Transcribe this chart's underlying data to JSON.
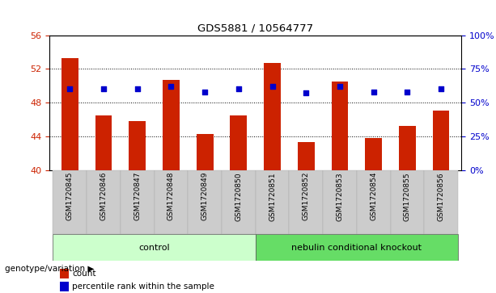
{
  "title": "GDS5881 / 10564777",
  "categories": [
    "GSM1720845",
    "GSM1720846",
    "GSM1720847",
    "GSM1720848",
    "GSM1720849",
    "GSM1720850",
    "GSM1720851",
    "GSM1720852",
    "GSM1720853",
    "GSM1720854",
    "GSM1720855",
    "GSM1720856"
  ],
  "bar_values": [
    53.3,
    46.5,
    45.8,
    50.7,
    44.3,
    46.5,
    52.7,
    43.3,
    50.5,
    43.8,
    45.2,
    47.0
  ],
  "percentile_values": [
    60.0,
    60.0,
    60.0,
    62.0,
    58.0,
    60.0,
    62.0,
    57.0,
    62.0,
    58.0,
    58.0,
    60.0
  ],
  "bar_color": "#cc2200",
  "dot_color": "#0000cc",
  "ylim_left": [
    40,
    56
  ],
  "ylim_right": [
    0,
    100
  ],
  "yticks_left": [
    40,
    44,
    48,
    52,
    56
  ],
  "yticks_right": [
    0,
    25,
    50,
    75,
    100
  ],
  "grid_values": [
    44,
    48,
    52
  ],
  "control_label": "control",
  "ko_label": "nebulin conditional knockout",
  "control_indices": [
    0,
    1,
    2,
    3,
    4,
    5
  ],
  "ko_indices": [
    6,
    7,
    8,
    9,
    10,
    11
  ],
  "control_bg": "#ccffcc",
  "ko_bg": "#66dd66",
  "bar_width": 0.5,
  "legend_count_label": "count",
  "legend_pct_label": "percentile rank within the sample",
  "genotype_label": "genotype/variation",
  "tick_bg": "#cccccc",
  "fig_width": 6.13,
  "fig_height": 3.63,
  "dpi": 100
}
